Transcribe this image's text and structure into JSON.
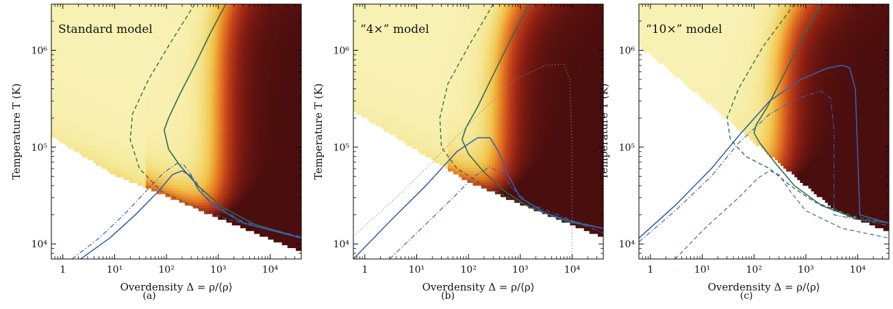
{
  "chart_data": [
    {
      "type": "heatmap",
      "panel_label": "(a)",
      "title": "Standard model",
      "xlabel": "Overdensity Δ = ρ/⟨ρ⟩",
      "ylabel": "Temperature T (K)",
      "x_scale": "log",
      "y_scale": "log",
      "xlim": [
        0.6,
        40000
      ],
      "ylim": [
        7000,
        3000000
      ],
      "x_ticks": [
        {
          "value": 1,
          "label": "1"
        },
        {
          "value": 10,
          "label": "10¹"
        },
        {
          "value": 100,
          "label": "10²"
        },
        {
          "value": 1000,
          "label": "10³"
        },
        {
          "value": 10000,
          "label": "10⁴"
        }
      ],
      "y_ticks": [
        {
          "value": 10000,
          "label": "10⁴"
        },
        {
          "value": 100000,
          "label": "10⁵"
        },
        {
          "value": 1000000,
          "label": "10⁶"
        }
      ],
      "colormap": [
        "#fbf7c8",
        "#f4e690",
        "#f2c34c",
        "#e67e22",
        "#c0401a",
        "#8a1e12",
        "#4a0e0e"
      ],
      "heat_params": {
        "cut_ref_T": 110000,
        "cut_slope": -0.33,
        "floor_T0": 10000,
        "floor_x0": 20000,
        "floor_slope": -0.22,
        "dark_log_x": 3.05,
        "dark_log_T_upper": 6.6
      },
      "series": [
        {
          "style": "solid-green",
          "color": "#2e6b4f",
          "points": [
            [
              1400,
              3000000
            ],
            [
              700,
              1500000
            ],
            [
              350,
              700000
            ],
            [
              180,
              350000
            ],
            [
              110,
              200000
            ],
            [
              90,
              150000
            ],
            [
              110,
              95000
            ],
            [
              180,
              65000
            ],
            [
              400,
              40000
            ],
            [
              1200,
              24000
            ],
            [
              5000,
              16000
            ],
            [
              40000,
              11500
            ]
          ]
        },
        {
          "style": "dashed-green",
          "color": "#2e6b4f",
          "points": [
            [
              350,
              3000000
            ],
            [
              120,
              1200000
            ],
            [
              45,
              500000
            ],
            [
              22,
              220000
            ],
            [
              20,
              120000
            ],
            [
              30,
              60000
            ],
            [
              80,
              35000
            ],
            [
              300,
              25000
            ],
            [
              1500,
              18000
            ],
            [
              40000,
              11500
            ]
          ]
        },
        {
          "style": "solid-blue",
          "color": "#3a5fb0",
          "points": [
            [
              2.2,
              7000
            ],
            [
              8,
              11500
            ],
            [
              25,
              20000
            ],
            [
              70,
              35000
            ],
            [
              130,
              52000
            ],
            [
              200,
              57000
            ],
            [
              300,
              50000
            ],
            [
              420,
              36000
            ],
            [
              800,
              25000
            ],
            [
              3000,
              16500
            ],
            [
              40000,
              11500
            ]
          ]
        },
        {
          "style": "dashdot-blue",
          "color": "#3a5fb0",
          "points": [
            [
              1.5,
              7000
            ],
            [
              5,
              11500
            ],
            [
              15,
              20000
            ],
            [
              40,
              35000
            ],
            [
              90,
              55000
            ],
            [
              160,
              68000
            ],
            [
              220,
              65000
            ],
            [
              330,
              48000
            ],
            [
              700,
              27000
            ],
            [
              3000,
              17000
            ],
            [
              40000,
              11800
            ]
          ]
        }
      ]
    },
    {
      "type": "heatmap",
      "panel_label": "(b)",
      "title": "“4×” model",
      "xlabel": "Overdensity Δ = ρ/⟨ρ⟩",
      "ylabel": "Temperature T (K)",
      "x_scale": "log",
      "y_scale": "log",
      "xlim": [
        0.6,
        40000
      ],
      "ylim": [
        7000,
        3000000
      ],
      "x_ticks": [
        {
          "value": 1,
          "label": "1"
        },
        {
          "value": 10,
          "label": "10¹"
        },
        {
          "value": 100,
          "label": "10²"
        },
        {
          "value": 1000,
          "label": "10³"
        },
        {
          "value": 10000,
          "label": "10⁴"
        }
      ],
      "y_ticks": [
        {
          "value": 10000,
          "label": "10⁴"
        },
        {
          "value": 100000,
          "label": "10⁵"
        },
        {
          "value": 1000000,
          "label": "10⁶"
        }
      ],
      "colormap": [
        "#fbf7c8",
        "#f4e690",
        "#f2c34c",
        "#e67e22",
        "#c0401a",
        "#8a1e12",
        "#4a0e0e"
      ],
      "heat_params": {
        "cut_ref_T": 200000,
        "cut_slope": -0.33,
        "floor_T0": 14000,
        "floor_x0": 20000,
        "floor_slope": -0.22,
        "dark_log_x": 2.65,
        "dark_log_T_upper": 6.6
      },
      "series": [
        {
          "style": "solid-green",
          "color": "#2e6b4f",
          "points": [
            [
              1500,
              3000000
            ],
            [
              700,
              1400000
            ],
            [
              320,
              600000
            ],
            [
              150,
              260000
            ],
            [
              90,
              160000
            ],
            [
              75,
              120000
            ],
            [
              100,
              85000
            ],
            [
              200,
              55000
            ],
            [
              500,
              35000
            ],
            [
              1500,
              24000
            ],
            [
              8000,
              17000
            ],
            [
              40000,
              14500
            ]
          ]
        },
        {
          "style": "dashed-green",
          "color": "#2e6b4f",
          "points": [
            [
              300,
              3000000
            ],
            [
              100,
              1100000
            ],
            [
              40,
              450000
            ],
            [
              28,
              200000
            ],
            [
              30,
              100000
            ],
            [
              60,
              60000
            ],
            [
              200,
              40000
            ],
            [
              800,
              28000
            ],
            [
              5000,
              19000
            ],
            [
              40000,
              14500
            ]
          ]
        },
        {
          "style": "solid-blue",
          "color": "#3a5fb0",
          "points": [
            [
              0.6,
              7000
            ],
            [
              3,
              17000
            ],
            [
              15,
              40000
            ],
            [
              60,
              90000
            ],
            [
              150,
              125000
            ],
            [
              260,
              125000
            ],
            [
              380,
              90000
            ],
            [
              600,
              50000
            ],
            [
              1000,
              30000
            ],
            [
              3000,
              21000
            ],
            [
              10000,
              17000
            ],
            [
              40000,
              14500
            ]
          ]
        },
        {
          "style": "dashdot-blue",
          "color": "#3a5fb0",
          "points": [
            [
              3,
              7000
            ],
            [
              15,
              16000
            ],
            [
              50,
              30000
            ],
            [
              130,
              50000
            ],
            [
              250,
              62000
            ],
            [
              420,
              55000
            ],
            [
              700,
              38000
            ],
            [
              1500,
              26000
            ],
            [
              6000,
              19500
            ],
            [
              40000,
              13000
            ]
          ]
        },
        {
          "style": "dotted-gray",
          "color": "#888888",
          "points": [
            [
              0.6,
              12000
            ],
            [
              3,
              26000
            ],
            [
              15,
              60000
            ],
            [
              60,
              130000
            ],
            [
              250,
              280000
            ],
            [
              800,
              500000
            ],
            [
              3000,
              700000
            ],
            [
              7000,
              720000
            ],
            [
              9000,
              500000
            ],
            [
              10000,
              100000
            ],
            [
              10000,
              7000
            ]
          ]
        }
      ]
    },
    {
      "type": "heatmap",
      "panel_label": "(c)",
      "title": "“10×” model",
      "xlabel": "Overdensity Δ = ρ/⟨ρ⟩",
      "ylabel": "Temperature T (K)",
      "x_scale": "log",
      "y_scale": "log",
      "xlim": [
        0.6,
        40000
      ],
      "ylim": [
        7000,
        3000000
      ],
      "x_ticks": [
        {
          "value": 1,
          "label": "1"
        },
        {
          "value": 10,
          "label": "10¹"
        },
        {
          "value": 100,
          "label": "10²"
        },
        {
          "value": 1000,
          "label": "10³"
        },
        {
          "value": 10000,
          "label": "10⁴"
        }
      ],
      "y_ticks": [
        {
          "value": 10000,
          "label": "10⁴"
        },
        {
          "value": 100000,
          "label": "10⁵"
        },
        {
          "value": 1000000,
          "label": "10⁶"
        }
      ],
      "colormap": [
        "#fbf7c8",
        "#f4e690",
        "#f2c34c",
        "#e67e22",
        "#c0401a",
        "#8a1e12",
        "#4a0e0e"
      ],
      "heat_params": {
        "cut_ref_T": 900000,
        "cut_slope": -0.45,
        "floor_T0": 16000,
        "floor_x0": 20000,
        "floor_slope": -0.22,
        "dark_log_x": 2.55,
        "dark_log_T_upper": 6.6
      },
      "series": [
        {
          "style": "solid-green",
          "color": "#2e6b4f",
          "points": [
            [
              2000,
              3000000
            ],
            [
              900,
              1400000
            ],
            [
              400,
              600000
            ],
            [
              180,
              260000
            ],
            [
              110,
              170000
            ],
            [
              100,
              140000
            ],
            [
              130,
              110000
            ],
            [
              250,
              70000
            ],
            [
              600,
              40000
            ],
            [
              2000,
              25000
            ],
            [
              10000,
              18000
            ],
            [
              40000,
              16500
            ]
          ]
        },
        {
          "style": "dashed-green",
          "color": "#2e6b4f",
          "points": [
            [
              600,
              3000000
            ],
            [
              150,
              1100000
            ],
            [
              50,
              400000
            ],
            [
              30,
              200000
            ],
            [
              35,
              120000
            ],
            [
              70,
              80000
            ],
            [
              200,
              60000
            ],
            [
              500,
              40000
            ],
            [
              1500,
              27000
            ],
            [
              8000,
              19500
            ],
            [
              40000,
              16500
            ]
          ]
        },
        {
          "style": "solid-blue",
          "color": "#3a5fb0",
          "points": [
            [
              0.6,
              11500
            ],
            [
              3,
              25000
            ],
            [
              15,
              60000
            ],
            [
              50,
              130000
            ],
            [
              200,
              300000
            ],
            [
              800,
              500000
            ],
            [
              2500,
              650000
            ],
            [
              5000,
              700000
            ],
            [
              7000,
              660000
            ],
            [
              9000,
              400000
            ],
            [
              11000,
              20000
            ],
            [
              40000,
              16500
            ]
          ]
        },
        {
          "style": "dashdot-blue",
          "color": "#3a5fb0",
          "points": [
            [
              0.6,
              10500
            ],
            [
              3,
              22000
            ],
            [
              15,
              50000
            ],
            [
              50,
              110000
            ],
            [
              200,
              220000
            ],
            [
              700,
              320000
            ],
            [
              2000,
              380000
            ],
            [
              3000,
              320000
            ],
            [
              3500,
              150000
            ],
            [
              3500,
              20000
            ],
            [
              40000,
              15500
            ]
          ]
        },
        {
          "style": "dashed-blue",
          "color": "#3a5fb0",
          "points": [
            [
              3,
              7000
            ],
            [
              12,
              15000
            ],
            [
              50,
              30000
            ],
            [
              120,
              48000
            ],
            [
              200,
              57000
            ],
            [
              300,
              52000
            ],
            [
              500,
              35000
            ],
            [
              1000,
              22000
            ],
            [
              5000,
              14500
            ],
            [
              40000,
              11500
            ]
          ]
        }
      ]
    }
  ]
}
